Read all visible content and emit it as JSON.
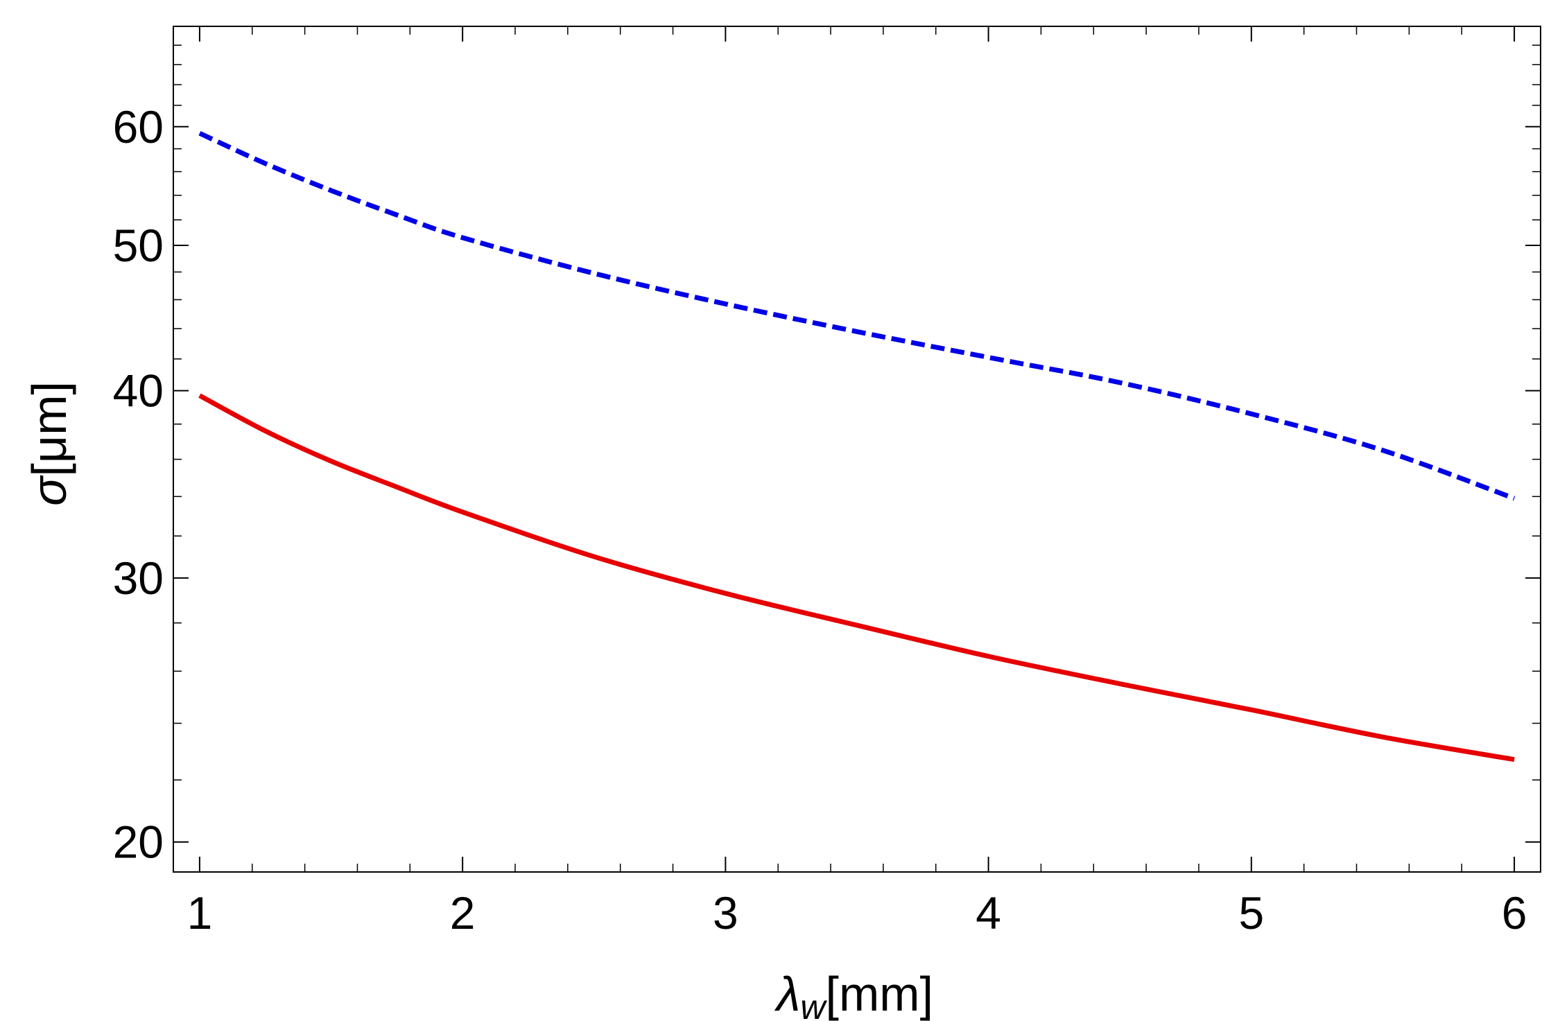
{
  "chart_data": {
    "type": "line",
    "xlabel": "λw[mm]",
    "xlabel_parts": {
      "symbol": "λ",
      "subscript": "w",
      "unit": "[mm]"
    },
    "ylabel": "σ[μm]",
    "ylabel_parts": {
      "symbol": "σ",
      "unit": "[μm]"
    },
    "xlim": [
      0.9,
      6.1
    ],
    "ylim": [
      19.1,
      70
    ],
    "yscale": "log",
    "grid": false,
    "frame": true,
    "x_ticks": [
      1,
      2,
      3,
      4,
      5,
      6
    ],
    "x_tick_labels": [
      "1",
      "2",
      "3",
      "4",
      "5",
      "6"
    ],
    "y_ticks": [
      20,
      30,
      40,
      50,
      60
    ],
    "y_tick_labels": [
      "20",
      "30",
      "40",
      "50",
      "60"
    ],
    "series": [
      {
        "color": "#0000e6",
        "style": "dashed",
        "points": [
          [
            1.0,
            59.4
          ],
          [
            1.25,
            56.7
          ],
          [
            1.5,
            54.4
          ],
          [
            1.75,
            52.4
          ],
          [
            2.0,
            50.6
          ],
          [
            2.5,
            47.9
          ],
          [
            3.0,
            45.7
          ],
          [
            3.5,
            43.8
          ],
          [
            4.0,
            42.1
          ],
          [
            4.5,
            40.5
          ],
          [
            5.0,
            38.6
          ],
          [
            5.5,
            36.5
          ],
          [
            6.0,
            33.9
          ]
        ]
      },
      {
        "color": "#e60000",
        "style": "solid",
        "points": [
          [
            1.0,
            39.7
          ],
          [
            1.25,
            37.6
          ],
          [
            1.5,
            35.9
          ],
          [
            1.75,
            34.5
          ],
          [
            2.0,
            33.2
          ],
          [
            2.5,
            31.0
          ],
          [
            3.0,
            29.3
          ],
          [
            3.5,
            27.9
          ],
          [
            4.0,
            26.6
          ],
          [
            4.5,
            25.5
          ],
          [
            5.0,
            24.5
          ],
          [
            5.5,
            23.5
          ],
          [
            6.0,
            22.7
          ]
        ]
      }
    ]
  }
}
